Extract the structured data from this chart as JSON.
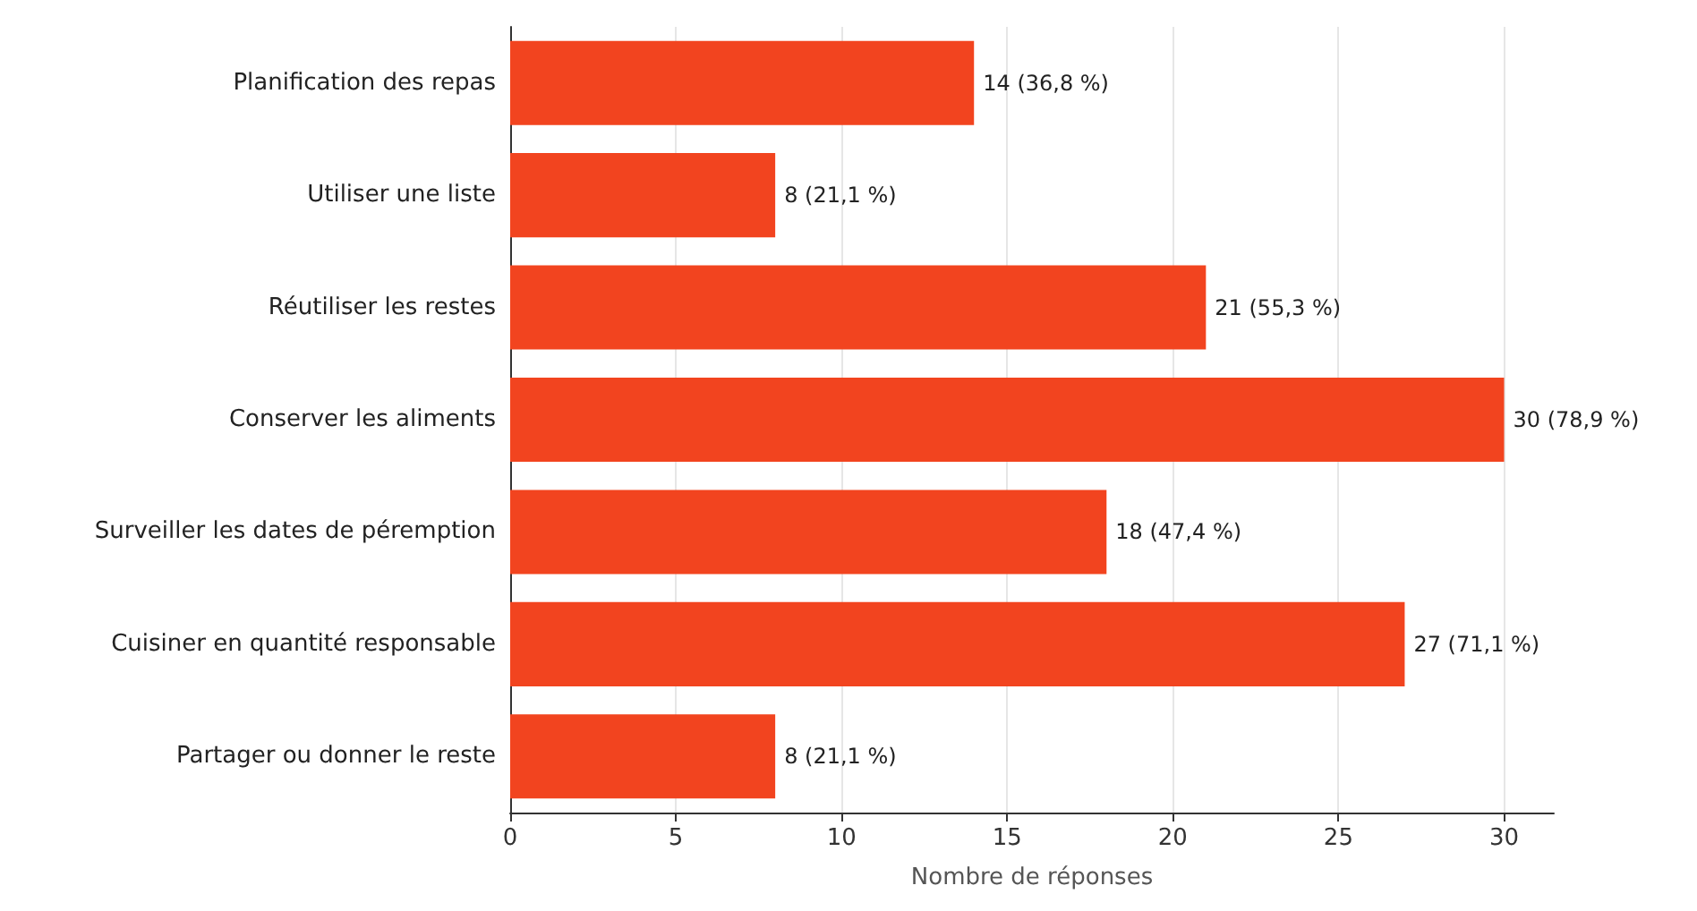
{
  "chart_data": {
    "type": "bar",
    "orientation": "horizontal",
    "xlabel": "Nombre de réponses",
    "categories": [
      "Planification des repas",
      "Utiliser une liste",
      "Réutiliser les restes",
      "Conserver les aliments",
      "Surveiller les dates de péremption",
      "Cuisiner en quantité responsable",
      "Partager ou donner le reste"
    ],
    "values": [
      14,
      8,
      21,
      30,
      18,
      27,
      8
    ],
    "value_labels": [
      "14 (36,8 %)",
      "8 (21,1 %)",
      "21 (55,3 %)",
      "30 (78,9 %)",
      "18 (47,4 %)",
      "27 (71,1 %)",
      "8 (21,1 %)"
    ],
    "color": "#f2441f",
    "xlim": [
      0,
      31.5
    ],
    "xticks": [
      0,
      5,
      10,
      15,
      20,
      25,
      30
    ],
    "grid": "x"
  }
}
